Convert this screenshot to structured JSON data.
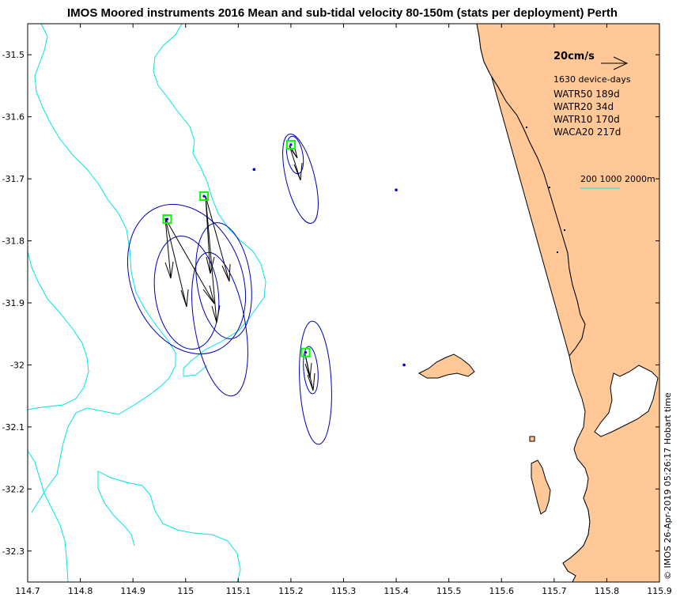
{
  "chart_data": {
    "type": "map",
    "title": "IMOS Moored instruments 2016 Mean and sub-tidal velocity 80-150m (stats per deployment) Perth",
    "xlim": [
      114.7,
      115.9
    ],
    "ylim": [
      -32.35,
      -31.45
    ],
    "x_ticks": [
      114.7,
      114.8,
      114.9,
      115.0,
      115.1,
      115.2,
      115.3,
      115.4,
      115.5,
      115.6,
      115.7,
      115.8,
      115.9
    ],
    "x_tick_labels": [
      "114.7",
      "114.8",
      "114.9",
      "115",
      "115.1",
      "115.2",
      "115.3",
      "115.4",
      "115.5",
      "115.6",
      "115.7",
      "115.8",
      "115.9"
    ],
    "y_ticks": [
      -31.5,
      -31.6,
      -31.7,
      -31.8,
      -31.9,
      -32.0,
      -32.1,
      -32.2,
      -32.3
    ],
    "y_tick_labels": [
      "-31.5",
      "-31.6",
      "-31.7",
      "-31.8",
      "-31.9",
      "-32",
      "-32.1",
      "-32.2",
      "-32.3"
    ],
    "scale_label": "20cm/s",
    "device_days": "1630 device-days",
    "stations": [
      {
        "name": "WATR50",
        "days": "189d",
        "lon": 114.965,
        "lat": -31.765
      },
      {
        "name": "WATR20",
        "days": "34d",
        "lon": 115.035,
        "lat": -31.728
      },
      {
        "name": "WATR10",
        "days": "170d",
        "lon": 115.2,
        "lat": -31.645
      },
      {
        "name": "WACA20",
        "days": "217d",
        "lon": 115.228,
        "lat": -31.98
      }
    ],
    "station_labels": [
      "WATR50 189d",
      "WATR20 34d",
      "WATR10 170d",
      "WACA20 217d"
    ],
    "other_moorings": [
      {
        "lon": 115.13,
        "lat": -31.685
      },
      {
        "lon": 115.4,
        "lat": -31.718
      },
      {
        "lon": 115.415,
        "lat": -32.0
      }
    ],
    "contour_label": "200 1000 2000m",
    "timestamp": "© IMOS 26-Apr-2019 05:26:17 Hobart time",
    "colors": {
      "land": "#ffc896",
      "contour": "#00e5e5",
      "ellipse": "#0000b0",
      "station_marker": "#00ff00",
      "mooring": "#0000cc"
    }
  }
}
